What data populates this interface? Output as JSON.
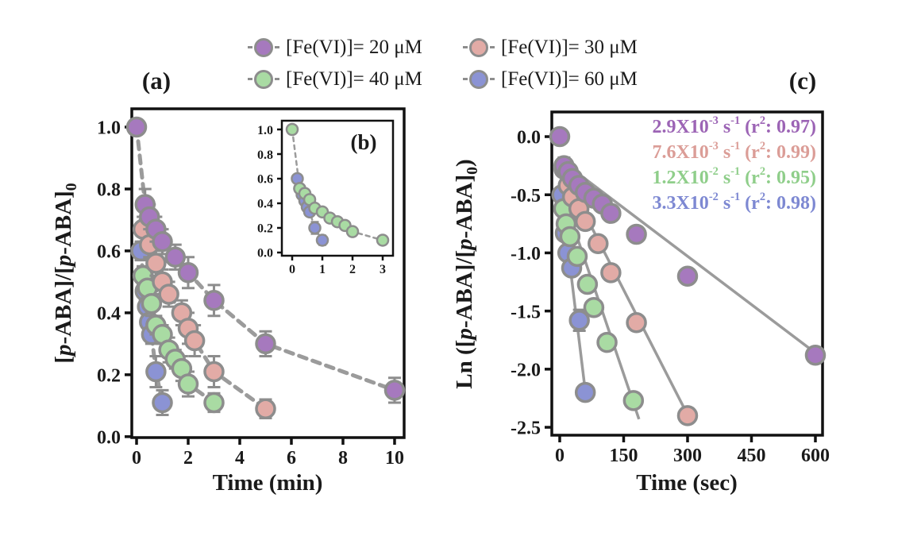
{
  "legend": {
    "marker_stroke": "#8d8d8d",
    "items": [
      {
        "label": "[Fe(VI)]= 20 μM",
        "color": "#a679be"
      },
      {
        "label": "[Fe(VI)]= 30 μM",
        "color": "#e2aba6"
      },
      {
        "label": "[Fe(VI)]= 40 μM",
        "color": "#a9dba3"
      },
      {
        "label": "[Fe(VI)]= 60 μM",
        "color": "#8b93d4"
      }
    ]
  },
  "labels": {
    "a_y": {
      "s0": "[",
      "s1": "p",
      "s2": "-ABA]/[",
      "s3": "p",
      "s4": "-ABA]",
      "s5": "0"
    },
    "c_y": {
      "s0": "Ln ([",
      "s1": "p",
      "s2": "-ABA]/[",
      "s3": "p",
      "s4": "-ABA]",
      "s5": "0",
      "s6": ")"
    }
  },
  "chart_data": [
    {
      "id": "panel_a",
      "type": "scatter",
      "title": "(a)",
      "xlabel": "Time (min)",
      "ylabel": "[p-ABA]/[p-ABA]0",
      "xlim": [
        -0.185,
        10.37
      ],
      "ylim": [
        -0.003,
        1.059
      ],
      "xticks": [
        0,
        2,
        4,
        6,
        8,
        10
      ],
      "xtick_labels": [
        "0",
        "2",
        "4",
        "6",
        "8",
        "10"
      ],
      "yticks": [
        0.0,
        0.2,
        0.4,
        0.6,
        0.8,
        1.0
      ],
      "ytick_labels": [
        "0.0",
        "0.2",
        "0.4",
        "0.6",
        "0.8",
        "1.0"
      ],
      "grid": false,
      "series": [
        {
          "key": "fe60",
          "name": "[Fe(VI)]= 60 μM",
          "color": "#8b93d4",
          "line": "dash",
          "points": [
            [
              0.17,
              0.6
            ],
            [
              0.25,
              0.52
            ],
            [
              0.33,
              0.47
            ],
            [
              0.42,
              0.42
            ],
            [
              0.5,
              0.37
            ],
            [
              0.58,
              0.33
            ],
            [
              0.75,
              0.21
            ],
            [
              1,
              0.11
            ]
          ],
          "err": [
            0.03,
            0.03,
            0.03,
            0.03,
            0.03,
            0.03,
            0.05,
            0.04
          ]
        },
        {
          "key": "fe40",
          "name": "[Fe(VI)]= 40 μM",
          "color": "#a9dba3",
          "line": "dash",
          "points": [
            [
              0.25,
              0.52
            ],
            [
              0.42,
              0.48
            ],
            [
              0.58,
              0.43
            ],
            [
              0.75,
              0.36
            ],
            [
              1,
              0.33
            ],
            [
              1.25,
              0.28
            ],
            [
              1.5,
              0.25
            ],
            [
              1.75,
              0.22
            ],
            [
              2,
              0.17
            ],
            [
              3,
              0.11
            ]
          ],
          "err": [
            0.03,
            0.03,
            0.04,
            0.03,
            0.03,
            0.04,
            0.03,
            0.04,
            0.04,
            0.03
          ]
        },
        {
          "key": "fe30",
          "name": "[Fe(VI)]= 30 μM",
          "color": "#e2aba6",
          "line": "dash",
          "points": [
            [
              0.25,
              0.67
            ],
            [
              0.5,
              0.62
            ],
            [
              0.75,
              0.56
            ],
            [
              1,
              0.5
            ],
            [
              1.25,
              0.46
            ],
            [
              1.75,
              0.4
            ],
            [
              2,
              0.35
            ],
            [
              2.25,
              0.31
            ],
            [
              3,
              0.21
            ],
            [
              5,
              0.09
            ]
          ],
          "err": [
            0.04,
            0.04,
            0.04,
            0.04,
            0.04,
            0.04,
            0.05,
            0.05,
            0.05,
            0.03
          ]
        },
        {
          "key": "fe20",
          "name": "[Fe(VI)]= 20 μM",
          "color": "#a679be",
          "line": "dash",
          "points": [
            [
              0,
              1.0
            ],
            [
              0.33,
              0.75
            ],
            [
              0.5,
              0.71
            ],
            [
              0.75,
              0.67
            ],
            [
              1,
              0.63
            ],
            [
              1.5,
              0.58
            ],
            [
              2,
              0.53
            ],
            [
              3,
              0.44
            ],
            [
              5,
              0.3
            ],
            [
              10,
              0.15
            ]
          ],
          "err": [
            0,
            0.05,
            0.04,
            0.04,
            0.04,
            0.04,
            0.05,
            0.05,
            0.04,
            0.04
          ]
        }
      ]
    },
    {
      "id": "inset_b",
      "type": "scatter",
      "title": "(b)",
      "xlabel": "",
      "ylabel": "",
      "xlim": [
        -0.342,
        3.342
      ],
      "ylim": [
        -0.026,
        1.071
      ],
      "xticks": [
        0,
        1,
        2,
        3
      ],
      "xtick_labels": [
        "0",
        "1",
        "2",
        "3"
      ],
      "yticks": [
        0.0,
        0.2,
        0.4,
        0.6,
        0.8,
        1.0
      ],
      "ytick_labels": [
        "0.0",
        "0.2",
        "0.4",
        "0.6",
        "0.8",
        "1.0"
      ],
      "grid": false,
      "series": [
        {
          "key": "fe60",
          "name": "[Fe(VI)]= 60 μM",
          "color": "#8b93d4",
          "line": "dash",
          "points": [
            [
              0.17,
              0.6
            ],
            [
              0.25,
              0.52
            ],
            [
              0.33,
              0.47
            ],
            [
              0.42,
              0.42
            ],
            [
              0.5,
              0.37
            ],
            [
              0.58,
              0.33
            ],
            [
              0.75,
              0.2
            ],
            [
              1,
              0.1
            ]
          ],
          "err": [
            0,
            0,
            0,
            0.04,
            0,
            0,
            0.05,
            0.04
          ]
        },
        {
          "key": "fe40",
          "name": "[Fe(VI)]= 40 μM",
          "color": "#a9dba3",
          "line": "dash",
          "points": [
            [
              0,
              1.0
            ],
            [
              0.25,
              0.52
            ],
            [
              0.42,
              0.48
            ],
            [
              0.58,
              0.43
            ],
            [
              0.75,
              0.36
            ],
            [
              1,
              0.33
            ],
            [
              1.25,
              0.28
            ],
            [
              1.5,
              0.25
            ],
            [
              1.75,
              0.22
            ],
            [
              2,
              0.17
            ],
            [
              3,
              0.1
            ]
          ],
          "err": [
            0,
            0,
            0,
            0,
            0,
            0,
            0,
            0,
            0.03,
            0,
            0
          ]
        }
      ]
    },
    {
      "id": "panel_c",
      "type": "scatter",
      "title": "(c)",
      "xlabel": "Time (sec)",
      "ylabel": "Ln ([p-ABA]/[p-ABA]0)",
      "xlim": [
        -18.6,
        616.8
      ],
      "ylim": [
        -2.568,
        0.212
      ],
      "xticks": [
        0,
        150,
        300,
        450,
        600
      ],
      "xtick_labels": [
        "0",
        "150",
        "300",
        "450",
        "600"
      ],
      "yticks": [
        0.0,
        -0.5,
        -1.0,
        -1.5,
        -2.0,
        -2.5
      ],
      "ytick_labels": [
        "0.0",
        "-0.5",
        "-1.0",
        "-1.5",
        "-2.0",
        "-2.5"
      ],
      "grid": false,
      "series": [
        {
          "key": "fe60",
          "name": "[Fe(VI)]= 60 μM",
          "color": "#8b93d4",
          "line": "none",
          "fit": [
            [
              4,
              -0.5
            ],
            [
              63,
              -2.28
            ]
          ],
          "points": [
            [
              5,
              -0.5
            ],
            [
              13,
              -0.83
            ],
            [
              19,
              -1.0
            ],
            [
              28,
              -1.13
            ],
            [
              46,
              -1.58
            ],
            [
              60,
              -2.2
            ]
          ],
          "err": [
            0,
            0,
            0,
            0,
            0.09,
            0
          ]
        },
        {
          "key": "fe40",
          "name": "[Fe(VI)]= 40 μM",
          "color": "#a9dba3",
          "line": "none",
          "fit": [
            [
              7,
              -0.5
            ],
            [
              186,
              -2.43
            ]
          ],
          "points": [
            [
              9,
              -0.62
            ],
            [
              15,
              -0.75
            ],
            [
              24,
              -0.86
            ],
            [
              41,
              -1.03
            ],
            [
              65,
              -1.27
            ],
            [
              80,
              -1.47
            ],
            [
              111,
              -1.77
            ],
            [
              173,
              -2.27
            ]
          ],
          "err": [
            0,
            0.06,
            0,
            0,
            0,
            0,
            0,
            0
          ]
        },
        {
          "key": "fe30",
          "name": "[Fe(VI)]= 30 μM",
          "color": "#e2aba6",
          "line": "none",
          "fit": [
            [
              8,
              -0.3
            ],
            [
              308,
              -2.45
            ]
          ],
          "points": [
            [
              10,
              -0.28
            ],
            [
              20,
              -0.42
            ],
            [
              30,
              -0.52
            ],
            [
              45,
              -0.62
            ],
            [
              60,
              -0.73
            ],
            [
              90,
              -0.92
            ],
            [
              120,
              -1.17
            ],
            [
              180,
              -1.6
            ],
            [
              300,
              -2.4
            ]
          ],
          "err": [
            0,
            0,
            0,
            0,
            0,
            0,
            0,
            0,
            0
          ]
        },
        {
          "key": "fe20",
          "name": "[Fe(VI)]= 20 μM",
          "color": "#a679be",
          "line": "none",
          "fit": [
            [
              8,
              -0.22
            ],
            [
              600,
              -1.86
            ]
          ],
          "points": [
            [
              0,
              0
            ],
            [
              10,
              -0.25
            ],
            [
              20,
              -0.3
            ],
            [
              30,
              -0.36
            ],
            [
              45,
              -0.42
            ],
            [
              60,
              -0.48
            ],
            [
              80,
              -0.53
            ],
            [
              100,
              -0.58
            ],
            [
              120,
              -0.66
            ],
            [
              180,
              -0.84
            ],
            [
              300,
              -1.2
            ],
            [
              600,
              -1.88
            ]
          ],
          "err": [
            0,
            0.07,
            0,
            0,
            0,
            0,
            0,
            0,
            0,
            0,
            0,
            0
          ]
        }
      ],
      "fits": [
        {
          "color": "#9c64b5",
          "k_per_s": 0.0029,
          "r2": 0.97,
          "b1": "2.9X10",
          "e1": "-3",
          "b2": " s",
          "e2": "-1",
          "b3": " (r",
          "e3": "2",
          "b4": ": 0.97)"
        },
        {
          "color": "#db9d97",
          "k_per_s": 0.0076,
          "r2": 0.99,
          "b1": "7.6X10",
          "e1": "-3",
          "b2": " s",
          "e2": "-1",
          "b3": " (r",
          "e3": "2",
          "b4": ": 0.99)"
        },
        {
          "color": "#8fce8a",
          "k_per_s": 0.012,
          "r2": 0.95,
          "b1": "1.2X10",
          "e1": "-2",
          "b2": " s",
          "e2": "-1",
          "b3": " (r",
          "e3": "2",
          "b4": ": 0.95)"
        },
        {
          "color": "#7d88d2",
          "k_per_s": 0.033,
          "r2": 0.98,
          "b1": "3.3X10",
          "e1": "-2",
          "b2": " s",
          "e2": "-1",
          "b3": " (r",
          "e3": "2",
          "b4": ": 0.98)"
        }
      ]
    }
  ]
}
